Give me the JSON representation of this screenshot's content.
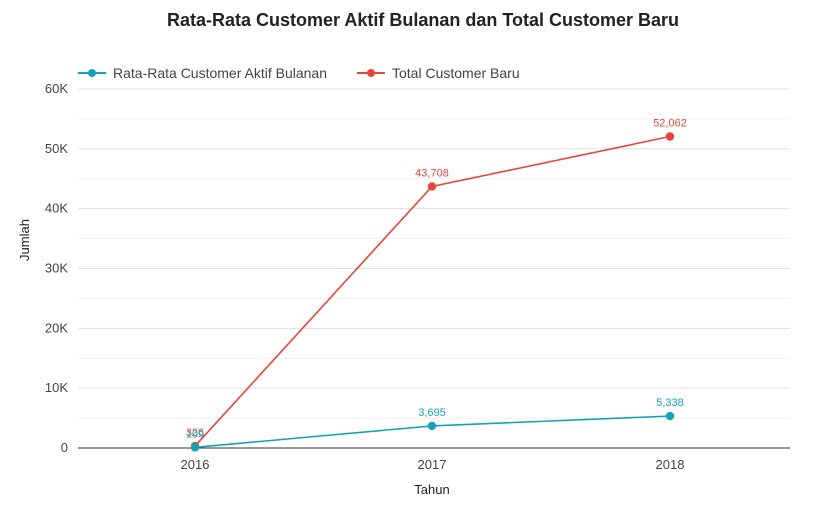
{
  "chart_data": {
    "type": "line",
    "title": "Rata-Rata Customer Aktif Bulanan dan Total Customer Baru",
    "xlabel": "Tahun",
    "ylabel": "Jumlah",
    "x": [
      "2016",
      "2017",
      "2018"
    ],
    "ylim": [
      0,
      60000
    ],
    "yticks": [
      "0",
      "10K",
      "20K",
      "30K",
      "40K",
      "50K",
      "60K"
    ],
    "grid": true,
    "legend_position": "top-left",
    "series": [
      {
        "name": "Rata-Rata Customer Aktif Bulanan",
        "color": "#12a4b6",
        "values": [
          109,
          3695,
          5338
        ],
        "labels": [
          "109",
          "3,695",
          "5,338"
        ]
      },
      {
        "name": "Total Customer Baru",
        "color": "#e8453c",
        "values": [
          326,
          43708,
          52062
        ],
        "labels": [
          "326",
          "43,708",
          "52,062"
        ]
      }
    ]
  }
}
